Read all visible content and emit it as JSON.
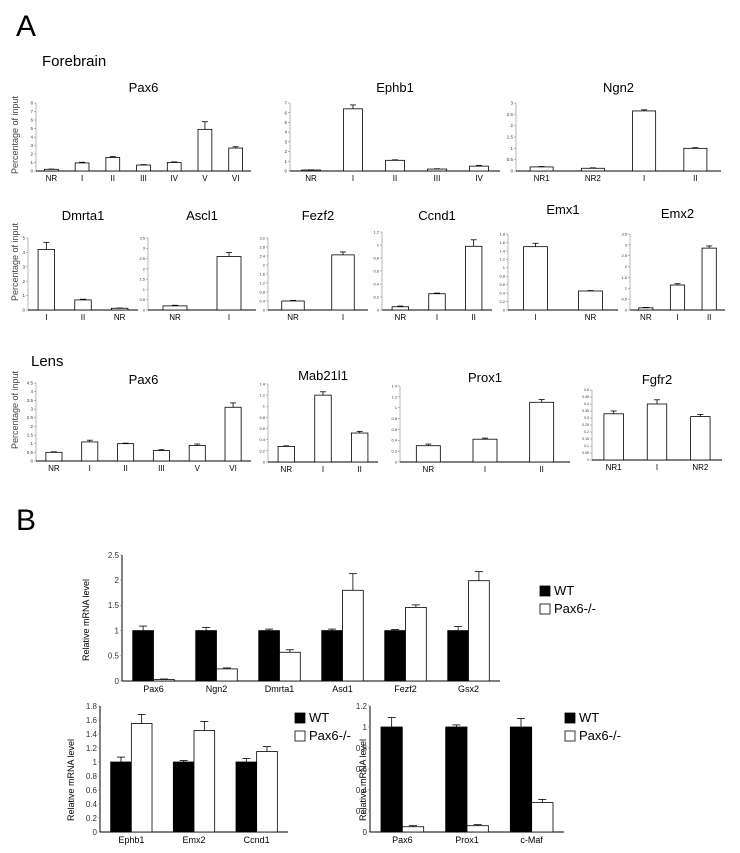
{
  "figure": {
    "panel_a_label": "A",
    "panel_b_label": "B",
    "forebrain_label": "Forebrain",
    "lens_label": "Lens",
    "chip_ylabel": "Percentage of input",
    "mrna_ylabel": "Relative mRNA level"
  },
  "chart_data": [
    {
      "id": "fb_pax6",
      "type": "bar",
      "title": "Pax6",
      "categories": [
        "NR",
        "I",
        "II",
        "III",
        "IV",
        "V",
        "VI"
      ],
      "values": [
        0.2,
        0.95,
        1.6,
        0.7,
        1.0,
        4.9,
        2.7
      ],
      "errors": [
        0.03,
        0.08,
        0.1,
        0.05,
        0.07,
        0.9,
        0.15
      ],
      "ylim": [
        0,
        8
      ],
      "ticks": [
        "0",
        "1",
        "2",
        "3",
        "4",
        "5",
        "6",
        "7",
        "8"
      ]
    },
    {
      "id": "fb_ephb1",
      "type": "bar",
      "title": "Ephb1",
      "categories": [
        "NR",
        "I",
        "II",
        "III",
        "IV"
      ],
      "values": [
        0.1,
        6.4,
        1.1,
        0.2,
        0.5
      ],
      "errors": [
        0.02,
        0.4,
        0.05,
        0.03,
        0.08
      ],
      "ylim": [
        0,
        7
      ],
      "ticks": [
        "0",
        "1",
        "2",
        "3",
        "4",
        "5",
        "6",
        "7"
      ]
    },
    {
      "id": "fb_ngn2",
      "type": "bar",
      "title": "Ngn2",
      "categories": [
        "NR1",
        "NR2",
        "I",
        "II"
      ],
      "values": [
        0.18,
        0.12,
        2.65,
        1.0
      ],
      "errors": [
        0.02,
        0.02,
        0.05,
        0.03
      ],
      "ylim": [
        0,
        3
      ],
      "ticks": [
        "0",
        "0.5",
        "1",
        "1.5",
        "2",
        "2.5",
        "3"
      ]
    },
    {
      "id": "fb_dmrta1",
      "type": "bar",
      "title": "Dmrta1",
      "categories": [
        "I",
        "II",
        "NR"
      ],
      "values": [
        4.2,
        0.7,
        0.12
      ],
      "errors": [
        0.5,
        0.05,
        0.02
      ],
      "ylim": [
        0,
        5
      ],
      "ticks": [
        "0",
        "1",
        "2",
        "3",
        "4",
        "5"
      ]
    },
    {
      "id": "fb_ascl1",
      "type": "bar",
      "title": "Ascl1",
      "categories": [
        "NR",
        "I"
      ],
      "values": [
        0.2,
        2.6
      ],
      "errors": [
        0.03,
        0.2
      ],
      "ylim": [
        0,
        3.5
      ],
      "ticks": [
        "0",
        "0.5",
        "1",
        "1.5",
        "2",
        "2.5",
        "3",
        "3.5"
      ]
    },
    {
      "id": "fb_fezf2",
      "type": "bar",
      "title": "Fezf2",
      "categories": [
        "NR",
        "I"
      ],
      "values": [
        0.4,
        2.45
      ],
      "errors": [
        0.03,
        0.13
      ],
      "ylim": [
        0,
        3.2
      ],
      "ticks": [
        "0",
        "0.4",
        "0.8",
        "1.2",
        "1.6",
        "2",
        "2.4",
        "2.8",
        "3.2"
      ]
    },
    {
      "id": "fb_ccnd1",
      "type": "bar",
      "title": "Ccnd1",
      "categories": [
        "NR",
        "I",
        "II"
      ],
      "values": [
        0.05,
        0.25,
        0.98
      ],
      "errors": [
        0.01,
        0.01,
        0.1
      ],
      "ylim": [
        0,
        1.2
      ],
      "ticks": [
        "0",
        "0.2",
        "0.4",
        "0.6",
        "0.8",
        "1",
        "1.2"
      ]
    },
    {
      "id": "fb_emx1",
      "type": "bar",
      "title": "Emx1",
      "categories": [
        "I",
        "NR"
      ],
      "values": [
        1.5,
        0.45
      ],
      "errors": [
        0.08,
        0.01
      ],
      "ylim": [
        0,
        1.8
      ],
      "ticks": [
        "0",
        "0.2",
        "0.4",
        "0.6",
        "0.8",
        "1",
        "1.2",
        "1.4",
        "1.6",
        "1.8"
      ]
    },
    {
      "id": "fb_emx2",
      "type": "bar",
      "title": "Emx2",
      "categories": [
        "NR",
        "I",
        "II"
      ],
      "values": [
        0.1,
        1.15,
        2.85
      ],
      "errors": [
        0.02,
        0.06,
        0.1
      ],
      "ylim": [
        0,
        3.5
      ],
      "ticks": [
        "0",
        "0.5",
        "1",
        "1.5",
        "2",
        "2.5",
        "3",
        "3.5"
      ]
    },
    {
      "id": "ln_pax6",
      "type": "bar",
      "title": "Pax6",
      "categories": [
        "NR",
        "I",
        "II",
        "III",
        "V",
        "VI"
      ],
      "values": [
        0.5,
        1.1,
        1.0,
        0.6,
        0.9,
        3.1
      ],
      "errors": [
        0.03,
        0.1,
        0.03,
        0.05,
        0.08,
        0.25
      ],
      "ylim": [
        0,
        4.5
      ],
      "ticks": [
        "0",
        "0.5",
        "1",
        "1.5",
        "2",
        "2.5",
        "3",
        "3.5",
        "4",
        "4.5"
      ]
    },
    {
      "id": "ln_mab21l1",
      "type": "bar",
      "title": "Mab21l1",
      "categories": [
        "NR",
        "I",
        "II"
      ],
      "values": [
        0.28,
        1.2,
        0.52
      ],
      "errors": [
        0.01,
        0.06,
        0.03
      ],
      "ylim": [
        0,
        1.4
      ],
      "ticks": [
        "0",
        "0.2",
        "0.4",
        "0.6",
        "0.8",
        "1",
        "1.2",
        "1.4"
      ]
    },
    {
      "id": "ln_prox1",
      "type": "bar",
      "title": "Prox1",
      "categories": [
        "NR",
        "I",
        "II"
      ],
      "values": [
        0.3,
        0.42,
        1.1
      ],
      "errors": [
        0.03,
        0.02,
        0.05
      ],
      "ylim": [
        0,
        1.4
      ],
      "ticks": [
        "0",
        "0.2",
        "0.4",
        "0.6",
        "0.8",
        "1",
        "1.2",
        "1.4"
      ]
    },
    {
      "id": "ln_fgfr2",
      "type": "bar",
      "title": "Fgfr2",
      "categories": [
        "NR1",
        "I",
        "NR2"
      ],
      "values": [
        0.33,
        0.4,
        0.31
      ],
      "errors": [
        0.02,
        0.03,
        0.015
      ],
      "ylim": [
        0,
        0.5
      ],
      "ticks": [
        "0",
        "0.05",
        "0.1",
        "0.15",
        "0.2",
        "0.25",
        "0.3",
        "0.35",
        "0.4",
        "0.45",
        "0.5"
      ]
    },
    {
      "id": "b_top",
      "type": "bar",
      "categories": [
        "Pax6",
        "Ngn2",
        "Dmrta1",
        "Asd1",
        "Fezf2",
        "Gsx2"
      ],
      "series": [
        {
          "name": "WT",
          "values": [
            1.0,
            1.0,
            1.0,
            1.0,
            1.0,
            1.0
          ],
          "errors": [
            0.09,
            0.06,
            0.03,
            0.03,
            0.02,
            0.08
          ]
        },
        {
          "name": "Pax6-/-",
          "values": [
            0.03,
            0.24,
            0.57,
            1.8,
            1.46,
            1.99
          ],
          "errors": [
            0.01,
            0.02,
            0.05,
            0.33,
            0.05,
            0.18
          ]
        }
      ],
      "ylim": [
        0,
        2.5
      ],
      "ticks": [
        "0",
        "0.5",
        "1",
        "1.5",
        "2",
        "2.5"
      ]
    },
    {
      "id": "b_left",
      "type": "bar",
      "categories": [
        "Ephb1",
        "Emx2",
        "Ccnd1"
      ],
      "series": [
        {
          "name": "WT",
          "values": [
            1.0,
            1.0,
            1.0
          ],
          "errors": [
            0.07,
            0.02,
            0.05
          ]
        },
        {
          "name": "Pax6-/-",
          "values": [
            1.55,
            1.45,
            1.15
          ],
          "errors": [
            0.13,
            0.13,
            0.07
          ]
        }
      ],
      "ylim": [
        0,
        1.8
      ],
      "ticks": [
        "0",
        "0.2",
        "0.4",
        "0.6",
        "0.8",
        "1",
        "1.2",
        "1.4",
        "1.6",
        "1.8"
      ]
    },
    {
      "id": "b_right",
      "type": "bar",
      "categories": [
        "Pax6",
        "Prox1",
        "c-Maf"
      ],
      "series": [
        {
          "name": "WT",
          "values": [
            1.0,
            1.0,
            1.0
          ],
          "errors": [
            0.09,
            0.02,
            0.08
          ]
        },
        {
          "name": "Pax6-/-",
          "values": [
            0.05,
            0.06,
            0.28
          ],
          "errors": [
            0.01,
            0.01,
            0.03
          ]
        }
      ],
      "ylim": [
        0,
        1.2
      ],
      "ticks": [
        "0",
        "0.2",
        "0.4",
        "0.6",
        "0.8",
        "1",
        "1.2"
      ]
    }
  ]
}
